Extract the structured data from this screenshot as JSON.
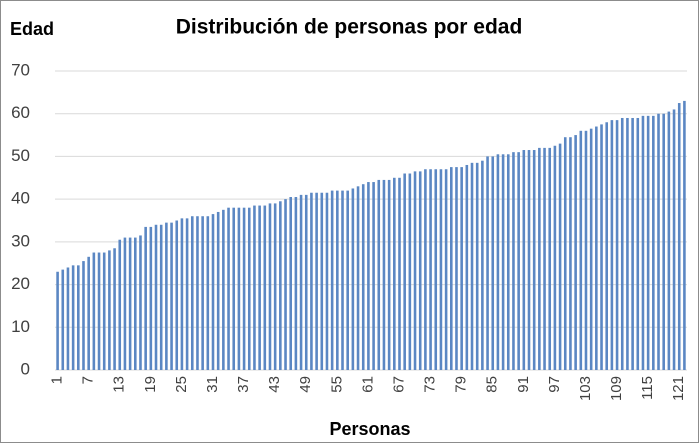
{
  "chart_data": {
    "type": "bar",
    "title": "Distribución de personas por edad",
    "y_label": "Edad",
    "x_label": "Personas",
    "color": "#5b87c3",
    "grid": true,
    "ylim": [
      0,
      70
    ],
    "yticks": [
      0,
      10,
      20,
      30,
      40,
      50,
      60,
      70
    ],
    "categories": [
      "1",
      null,
      null,
      null,
      null,
      null,
      "7",
      null,
      null,
      null,
      null,
      null,
      "13",
      null,
      null,
      null,
      null,
      null,
      "19",
      null,
      null,
      null,
      null,
      null,
      "25",
      null,
      null,
      null,
      null,
      null,
      "31",
      null,
      null,
      null,
      null,
      null,
      "37",
      null,
      null,
      null,
      null,
      null,
      "43",
      null,
      null,
      null,
      null,
      null,
      "49",
      null,
      null,
      null,
      null,
      null,
      "55",
      null,
      null,
      null,
      null,
      null,
      "61",
      null,
      null,
      null,
      null,
      null,
      "67",
      null,
      null,
      null,
      null,
      null,
      "73",
      null,
      null,
      null,
      null,
      null,
      "79",
      null,
      null,
      null,
      null,
      null,
      "85",
      null,
      null,
      null,
      null,
      null,
      "91",
      null,
      null,
      null,
      null,
      null,
      "97",
      null,
      null,
      null,
      null,
      null,
      "103",
      null,
      null,
      null,
      null,
      null,
      "109",
      null,
      null,
      null,
      null,
      null,
      "115",
      null,
      null,
      null,
      null,
      null,
      "121",
      null
    ],
    "values": [
      23,
      23.5,
      24,
      24.5,
      24.5,
      25.5,
      26.5,
      27.5,
      27.5,
      27.5,
      28,
      28.5,
      30.5,
      31,
      31,
      31,
      31.5,
      33.5,
      33.5,
      34,
      34,
      34.5,
      34.5,
      35,
      35.5,
      35.5,
      36,
      36,
      36,
      36,
      36.5,
      37,
      37.5,
      38,
      38,
      38,
      38,
      38,
      38.5,
      38.5,
      38.5,
      39,
      39,
      39.5,
      40,
      40.5,
      40.5,
      41,
      41,
      41.5,
      41.5,
      41.5,
      41.5,
      42,
      42,
      42,
      42,
      42.5,
      43,
      43.5,
      44,
      44,
      44.5,
      44.5,
      44.5,
      45,
      45,
      46,
      46,
      46.5,
      46.5,
      47,
      47,
      47,
      47,
      47,
      47.5,
      47.5,
      47.5,
      48,
      48.5,
      48.5,
      49,
      50,
      50,
      50.5,
      50.5,
      50.5,
      51,
      51,
      51.5,
      51.5,
      51.5,
      52,
      52,
      52,
      52.5,
      53,
      54.5,
      54.5,
      55,
      56,
      56,
      56.5,
      57,
      57.5,
      58,
      58.5,
      58.5,
      59,
      59,
      59,
      59,
      59.5,
      59.5,
      59.5,
      60,
      60,
      60.5,
      61,
      62.5,
      63
    ]
  }
}
